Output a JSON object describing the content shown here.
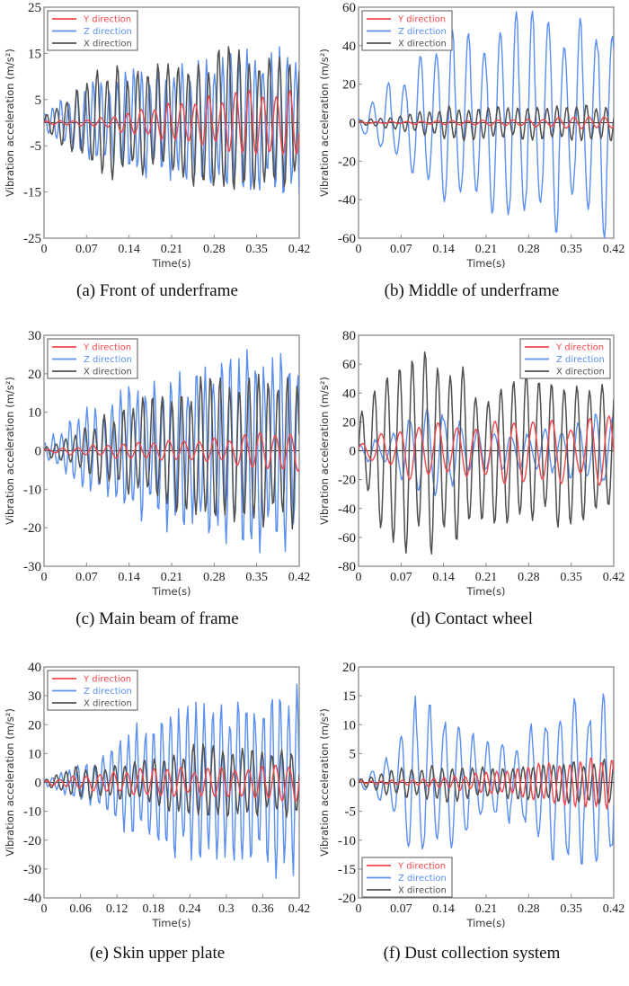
{
  "colors": {
    "Y direction": "#f0474b",
    "Z direction": "#5b8ff0",
    "X direction": "#505050",
    "frame": "#8a8a8a",
    "zero_line": "#333333"
  },
  "chart_data": [
    {
      "id": "a",
      "type": "line",
      "caption": "(a) Front of underframe",
      "xlabel": "Time(s)",
      "ylabel": "Vibration acceleration (m/s²)",
      "xlim": [
        0,
        0.42
      ],
      "ylim": [
        -25,
        25
      ],
      "xticks": [
        "0",
        "0.07",
        "0.14",
        "0.21",
        "0.28",
        "0.35",
        "0.42"
      ],
      "yticks": [
        "-25",
        "-15",
        "-5",
        "5",
        "15",
        "25"
      ],
      "legend_position": "top-left",
      "series": [
        {
          "name": "Y direction",
          "x": [
            0,
            0.05,
            0.1,
            0.15,
            0.2,
            0.25,
            0.3,
            0.35,
            0.42
          ],
          "envelope": [
            0.3,
            0.5,
            1,
            2.5,
            3.5,
            4.5,
            5.5,
            6.2,
            6.5
          ],
          "freq_hz": 45,
          "phase": 0.3
        },
        {
          "name": "Z direction",
          "x": [
            0,
            0.05,
            0.1,
            0.15,
            0.2,
            0.25,
            0.3,
            0.35,
            0.42
          ],
          "envelope": [
            2.5,
            6,
            9,
            10,
            11,
            12,
            13,
            14,
            14.5
          ],
          "freq_hz": 75,
          "phase": 1.2
        },
        {
          "name": "X direction",
          "x": [
            0,
            0.05,
            0.1,
            0.15,
            0.2,
            0.25,
            0.3,
            0.35,
            0.42
          ],
          "envelope": [
            1,
            7,
            11,
            10,
            11,
            13,
            15,
            14,
            13
          ],
          "freq_hz": 60,
          "phase": 0
        }
      ]
    },
    {
      "id": "b",
      "type": "line",
      "caption": "(b) Middle of underframe",
      "xlabel": "Time(s)",
      "ylabel": "Vibration acceleration (m/s²)",
      "xlim": [
        0,
        0.42
      ],
      "ylim": [
        -60,
        60
      ],
      "xticks": [
        "0",
        "0.07",
        "0.14",
        "0.21",
        "0.28",
        "0.35",
        "0.42"
      ],
      "yticks": [
        "-60",
        "-40",
        "-20",
        "0",
        "20",
        "40",
        "60"
      ],
      "legend_position": "top-left",
      "series": [
        {
          "name": "Y direction",
          "x": [
            0,
            0.05,
            0.1,
            0.15,
            0.2,
            0.25,
            0.3,
            0.35,
            0.42
          ],
          "envelope": [
            0.3,
            0.5,
            0.8,
            1,
            1.2,
            1.5,
            2,
            2.5,
            3
          ],
          "freq_hz": 40,
          "phase": 0.5
        },
        {
          "name": "Z direction",
          "x": [
            0,
            0.05,
            0.1,
            0.15,
            0.2,
            0.25,
            0.3,
            0.35,
            0.42
          ],
          "envelope": [
            5,
            18,
            30,
            40,
            48,
            50,
            48,
            50,
            52
          ],
          "freq_hz": 38,
          "phase": 2.4
        },
        {
          "name": "X direction",
          "x": [
            0,
            0.05,
            0.1,
            0.15,
            0.2,
            0.25,
            0.3,
            0.35,
            0.42
          ],
          "envelope": [
            1,
            3,
            5,
            8,
            8,
            8,
            8,
            9,
            9
          ],
          "freq_hz": 62,
          "phase": 0
        }
      ]
    },
    {
      "id": "c",
      "type": "line",
      "caption": "(c) Main beam of frame",
      "xlabel": "Time(s)",
      "ylabel": "Vibration acceleration (m/s²)",
      "xlim": [
        0,
        0.42
      ],
      "ylim": [
        -30,
        30
      ],
      "xticks": [
        "0",
        "0.07",
        "0.14",
        "0.21",
        "0.28",
        "0.35",
        "0.42"
      ],
      "yticks": [
        "-30",
        "-20",
        "-10",
        "0",
        "10",
        "20",
        "30"
      ],
      "legend_position": "top-left",
      "series": [
        {
          "name": "Y direction",
          "x": [
            0,
            0.05,
            0.1,
            0.15,
            0.2,
            0.25,
            0.3,
            0.35,
            0.42
          ],
          "envelope": [
            0.3,
            1,
            1.5,
            2,
            2.3,
            2.5,
            3,
            4,
            5
          ],
          "freq_hz": 40,
          "phase": 0.2
        },
        {
          "name": "Z direction",
          "x": [
            0,
            0.05,
            0.1,
            0.15,
            0.2,
            0.25,
            0.3,
            0.35,
            0.42
          ],
          "envelope": [
            2,
            8,
            12,
            15,
            18,
            19,
            22,
            23,
            22
          ],
          "freq_hz": 72,
          "phase": 1.1
        },
        {
          "name": "X direction",
          "x": [
            0,
            0.05,
            0.1,
            0.15,
            0.2,
            0.25,
            0.3,
            0.35,
            0.42
          ],
          "envelope": [
            1,
            4,
            8,
            11,
            14,
            17,
            18,
            19,
            17
          ],
          "freq_hz": 63,
          "phase": 0
        }
      ]
    },
    {
      "id": "d",
      "type": "line",
      "caption": "(d) Contact wheel",
      "xlabel": "Time(s)",
      "ylabel": "Vibration acceleration (m/s²)",
      "xlim": [
        0,
        0.42
      ],
      "ylim": [
        -80,
        80
      ],
      "xticks": [
        "0",
        "0.07",
        "0.14",
        "0.21",
        "0.28",
        "0.35",
        "0.42"
      ],
      "yticks": [
        "-80",
        "-60",
        "-40",
        "-20",
        "0",
        "20",
        "40",
        "60",
        "80"
      ],
      "legend_position": "top-right",
      "series": [
        {
          "name": "Y direction",
          "x": [
            0,
            0.05,
            0.1,
            0.15,
            0.2,
            0.25,
            0.3,
            0.35,
            0.42
          ],
          "envelope": [
            4,
            12,
            20,
            15,
            18,
            20,
            22,
            18,
            22
          ],
          "freq_hz": 32,
          "phase": 0.4
        },
        {
          "name": "Z direction",
          "x": [
            0,
            0.05,
            0.1,
            0.15,
            0.2,
            0.25,
            0.3,
            0.35,
            0.42
          ],
          "envelope": [
            5,
            10,
            28,
            25,
            14,
            10,
            12,
            18,
            25
          ],
          "freq_hz": 36,
          "phase": 1.3
        },
        {
          "name": "X direction",
          "x": [
            0,
            0.05,
            0.1,
            0.15,
            0.2,
            0.25,
            0.3,
            0.35,
            0.42
          ],
          "envelope": [
            20,
            65,
            60,
            62,
            40,
            50,
            50,
            45,
            45
          ],
          "freq_hz": 48,
          "phase": 0
        }
      ]
    },
    {
      "id": "e",
      "type": "line",
      "caption": "(e) Skin upper plate",
      "xlabel": "Time(s)",
      "ylabel": "Vibration acceleration (m/s²)",
      "xlim": [
        0,
        0.42
      ],
      "ylim": [
        -40,
        40
      ],
      "xticks": [
        "0",
        "0.06",
        "0.12",
        "0.18",
        "0.24",
        "0.3",
        "0.36",
        "0.42"
      ],
      "yticks": [
        "-40",
        "-30",
        "-20",
        "-10",
        "0",
        "10",
        "20",
        "30",
        "40"
      ],
      "legend_position": "top-left",
      "series": [
        {
          "name": "Y direction",
          "x": [
            0,
            0.05,
            0.1,
            0.15,
            0.2,
            0.25,
            0.3,
            0.35,
            0.42
          ],
          "envelope": [
            0.5,
            2,
            3,
            4,
            5,
            4,
            4.5,
            5,
            6
          ],
          "freq_hz": 45,
          "phase": 0.7
        },
        {
          "name": "Z direction",
          "x": [
            0,
            0.05,
            0.1,
            0.15,
            0.2,
            0.25,
            0.3,
            0.35,
            0.42
          ],
          "envelope": [
            1,
            5,
            10,
            17,
            24,
            25,
            24,
            28,
            30
          ],
          "freq_hz": 72,
          "phase": 1.6
        },
        {
          "name": "X direction",
          "x": [
            0,
            0.05,
            0.1,
            0.15,
            0.2,
            0.25,
            0.3,
            0.35,
            0.42
          ],
          "envelope": [
            1,
            5,
            5,
            6,
            9,
            12,
            12,
            11,
            10
          ],
          "freq_hz": 62,
          "phase": 0
        }
      ]
    },
    {
      "id": "f",
      "type": "line",
      "caption": "(f) Dust collection system",
      "xlabel": "Time(s)",
      "ylabel": "Vibration acceleration (m/s²)",
      "xlim": [
        0,
        0.42
      ],
      "ylim": [
        -20,
        20
      ],
      "xticks": [
        "0",
        "0.07",
        "0.14",
        "0.21",
        "0.28",
        "0.35",
        "0.42"
      ],
      "yticks": [
        "-20",
        "-15",
        "-10",
        "-5",
        "0",
        "5",
        "10",
        "15",
        "20"
      ],
      "legend_position": "bottom-left",
      "series": [
        {
          "name": "Y direction",
          "x": [
            0,
            0.05,
            0.1,
            0.15,
            0.2,
            0.25,
            0.3,
            0.35,
            0.42
          ],
          "envelope": [
            0.2,
            0.3,
            0.5,
            1,
            1.5,
            2,
            3,
            3.5,
            4.2
          ],
          "freq_hz": 58,
          "phase": 0.4
        },
        {
          "name": "Z direction",
          "x": [
            0,
            0.05,
            0.1,
            0.15,
            0.2,
            0.25,
            0.3,
            0.35,
            0.42
          ],
          "envelope": [
            1,
            4,
            14,
            12,
            6,
            6,
            11,
            13,
            14
          ],
          "freq_hz": 42,
          "phase": 2.0
        },
        {
          "name": "X direction",
          "x": [
            0,
            0.05,
            0.1,
            0.15,
            0.2,
            0.25,
            0.3,
            0.35,
            0.42
          ],
          "envelope": [
            0.5,
            2,
            2.5,
            3,
            2.5,
            2.5,
            3,
            3.5,
            3.5
          ],
          "freq_hz": 60,
          "phase": 0
        }
      ]
    }
  ],
  "panels": [
    {
      "caption": "(a) Front of underframe"
    },
    {
      "caption": "(b) Middle of underframe"
    },
    {
      "caption": "(c) Main beam of frame"
    },
    {
      "caption": "(d) Contact wheel"
    },
    {
      "caption": "(e) Skin upper plate"
    },
    {
      "caption": "(f) Dust collection system"
    }
  ]
}
